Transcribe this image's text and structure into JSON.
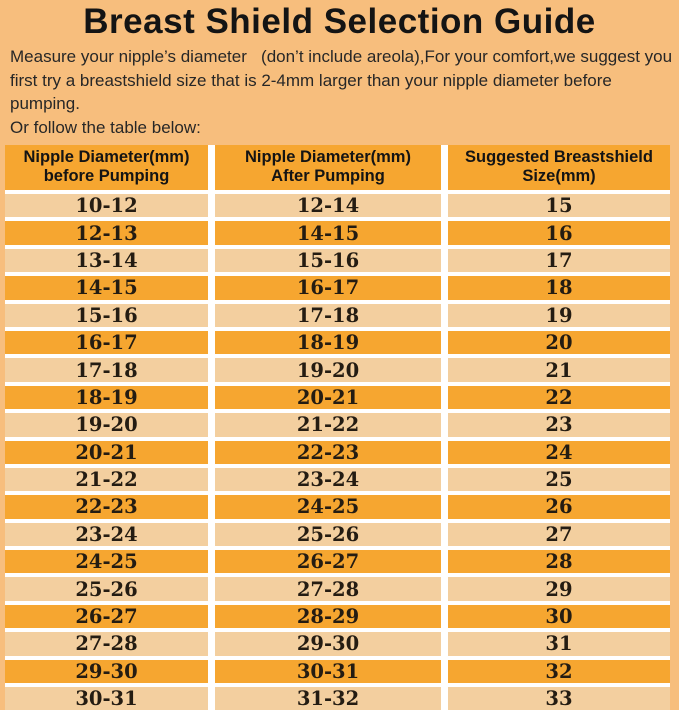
{
  "page": {
    "title": "Breast Shield Selection Guide",
    "intro": {
      "line1": "Measure your nipple’s diameter   (don’t include areola),For your comfort,we suggest you",
      "line2": "first try a breastshield size that is 2-4mm larger than your nipple diameter before pumping.",
      "line3": "Or follow the table below:"
    }
  },
  "colors": {
    "page_background": "#F7BE7D",
    "header_row": "#F6A630",
    "row_dark": "#F6A630",
    "row_light": "#F3CF9F",
    "separator": "#FFFFFF",
    "text": "#241C12"
  },
  "table": {
    "headers": [
      {
        "line1": "Nipple Diameter(mm)",
        "line2": "before Pumping"
      },
      {
        "line1": "Nipple Diameter(mm)",
        "line2": "After Pumping"
      },
      {
        "line1": "Suggested Breastshield",
        "line2": "Size(mm)"
      }
    ],
    "rows": [
      [
        "10-12",
        "12-14",
        "15"
      ],
      [
        "12-13",
        "14-15",
        "16"
      ],
      [
        "13-14",
        "15-16",
        "17"
      ],
      [
        "14-15",
        "16-17",
        "18"
      ],
      [
        "15-16",
        "17-18",
        "19"
      ],
      [
        "16-17",
        "18-19",
        "20"
      ],
      [
        "17-18",
        "19-20",
        "21"
      ],
      [
        "18-19",
        "20-21",
        "22"
      ],
      [
        "19-20",
        "21-22",
        "23"
      ],
      [
        "20-21",
        "22-23",
        "24"
      ],
      [
        "21-22",
        "23-24",
        "25"
      ],
      [
        "22-23",
        "24-25",
        "26"
      ],
      [
        "23-24",
        "25-26",
        "27"
      ],
      [
        "24-25",
        "26-27",
        "28"
      ],
      [
        "25-26",
        "27-28",
        "29"
      ],
      [
        "26-27",
        "28-29",
        "30"
      ],
      [
        "27-28",
        "29-30",
        "31"
      ],
      [
        "29-30",
        "30-31",
        "32"
      ],
      [
        "30-31",
        "31-32",
        "33"
      ]
    ]
  }
}
